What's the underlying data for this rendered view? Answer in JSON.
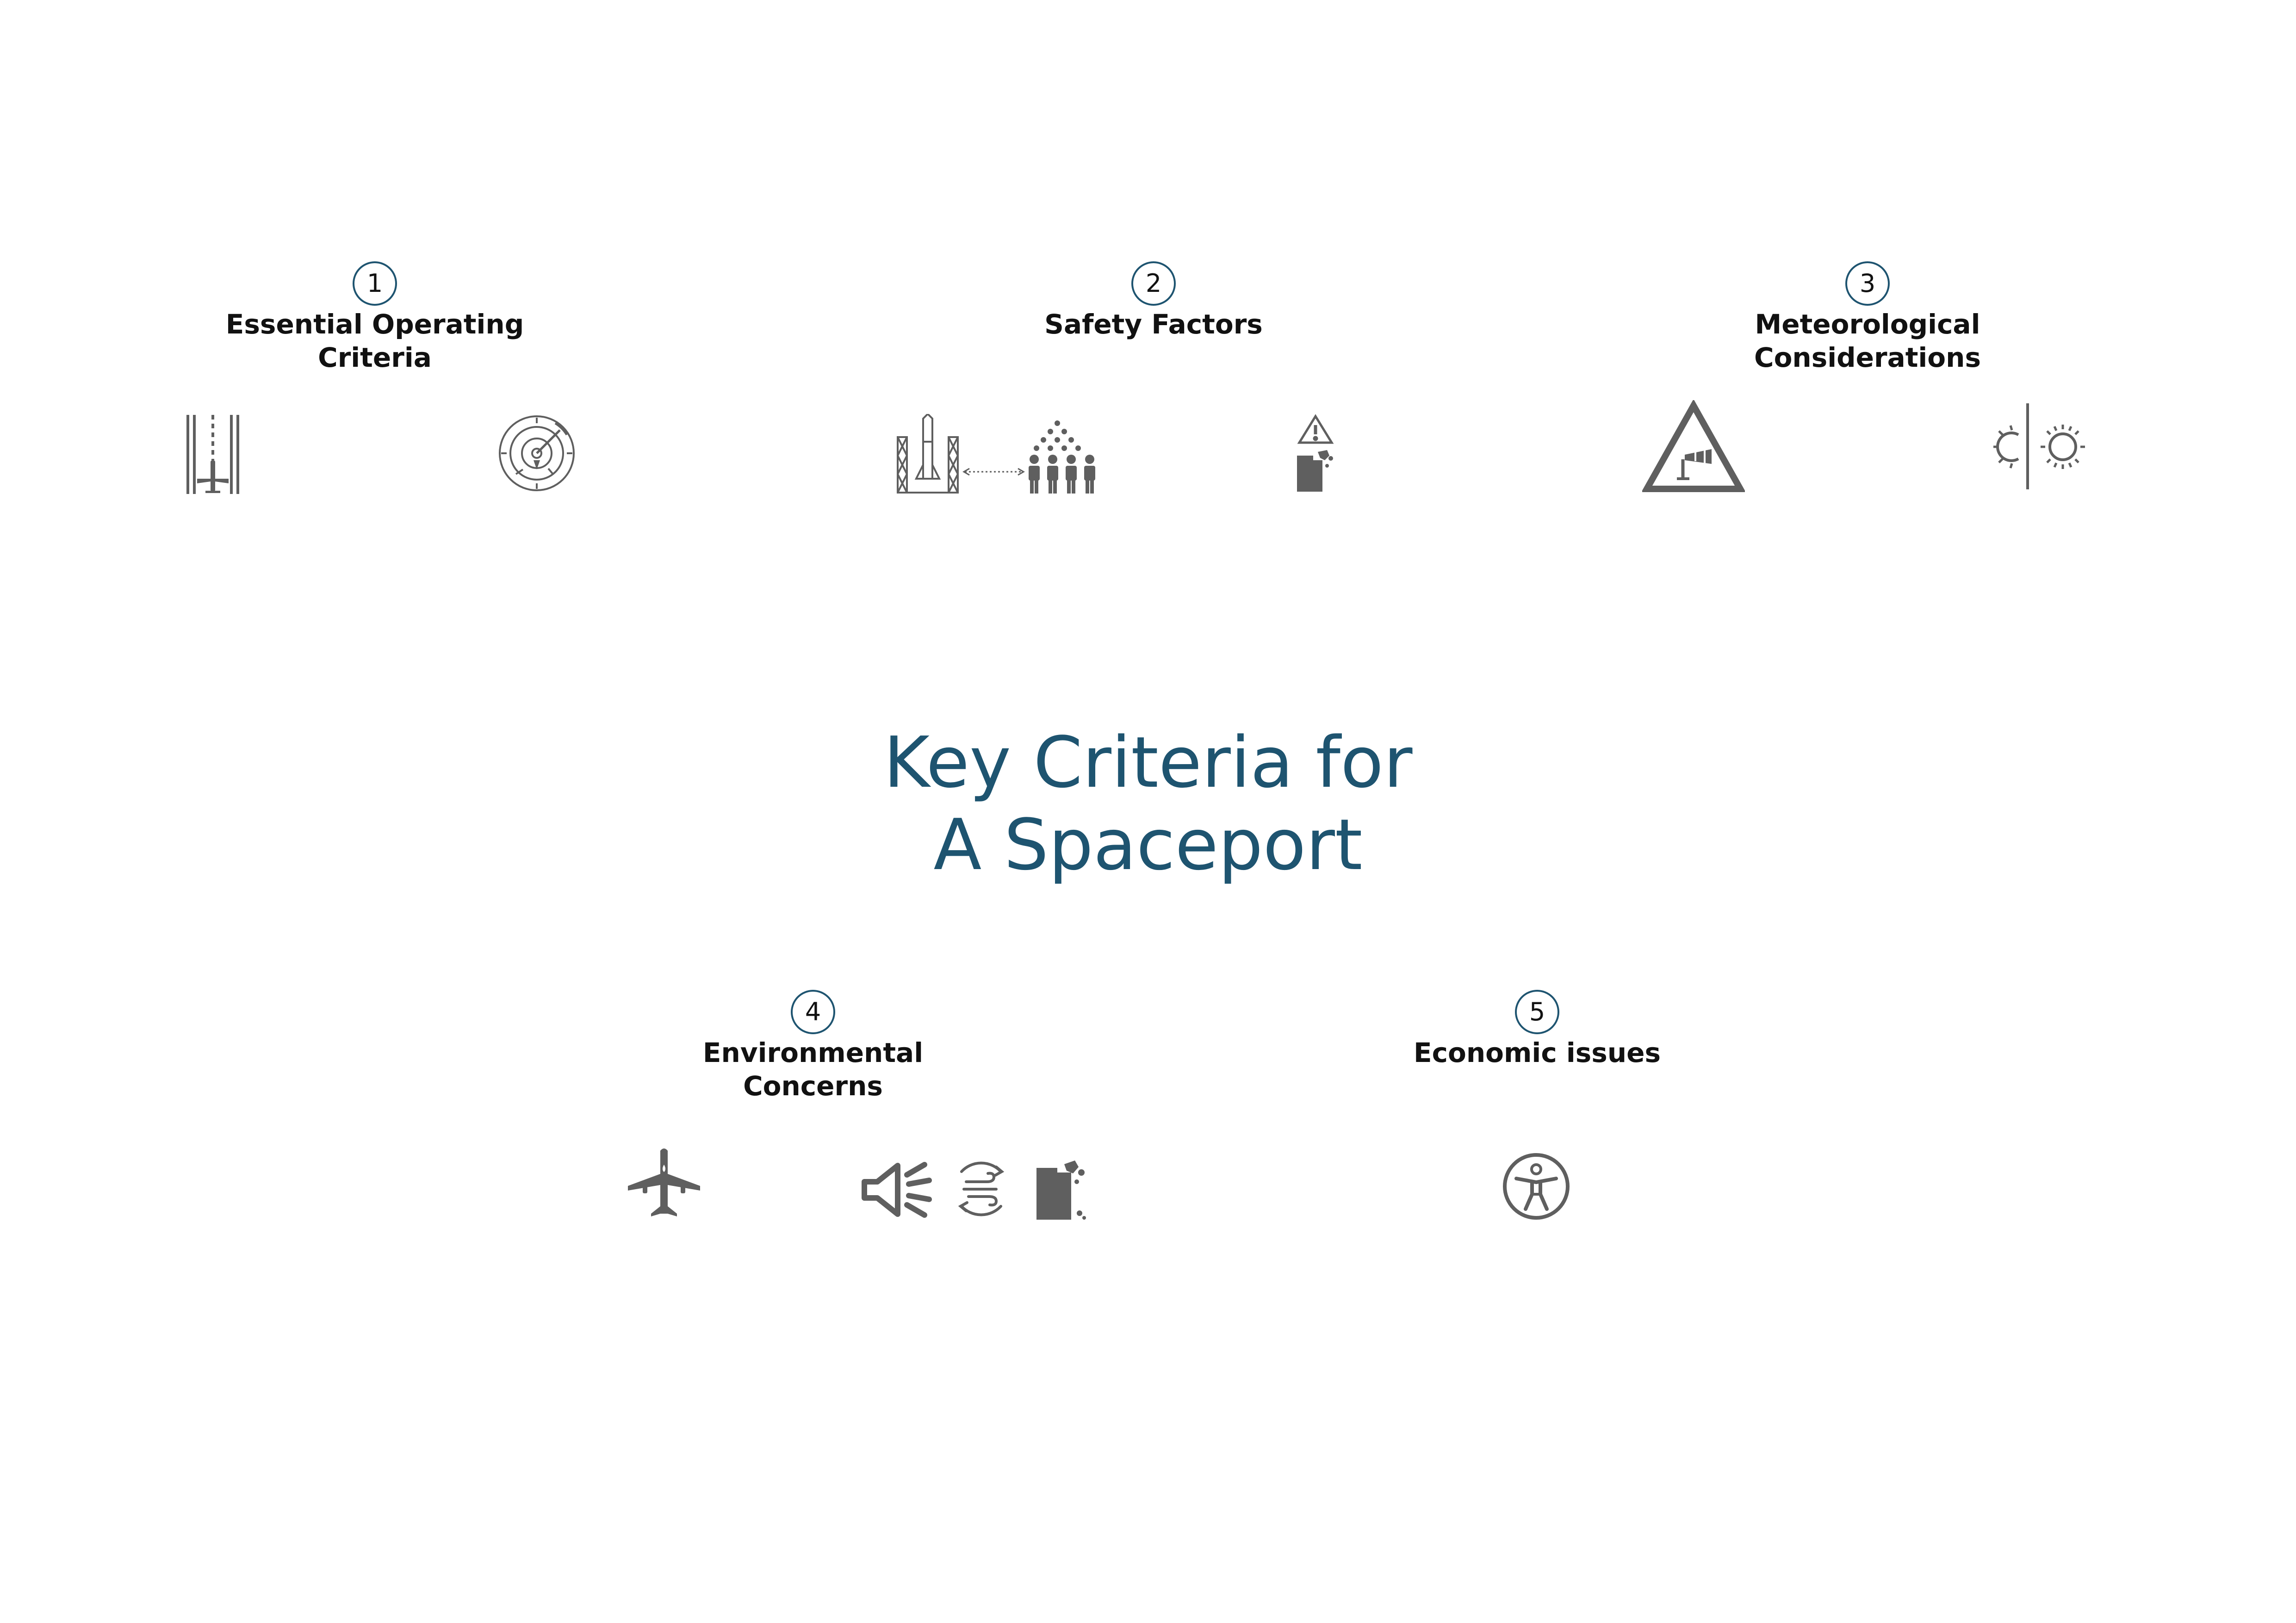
{
  "title": "Key Criteria for\nA Spaceport",
  "colors": {
    "accent": "#1e5470",
    "icon": "#5f5f5f",
    "text": "#111111"
  },
  "criteria": [
    {
      "number": "1",
      "label": "Essential Operating\nCriteria",
      "icons": [
        "runway-icon",
        "radar-icon"
      ]
    },
    {
      "number": "2",
      "label": "Safety Factors",
      "icons": [
        "launch-pad-crowd-distance-icon",
        "hazardous-fuel-icon"
      ]
    },
    {
      "number": "3",
      "label": "Meteorological\nConsiderations",
      "icons": [
        "windsock-warning-icon",
        "daylight-icon"
      ]
    },
    {
      "number": "4",
      "label": "Environmental\nConcerns",
      "icons": [
        "aircraft-icon",
        "noise-icon",
        "air-quality-icon",
        "fuel-pollution-icon"
      ]
    },
    {
      "number": "5",
      "label": "Economic issues",
      "icons": [
        "accessibility-icon"
      ]
    }
  ]
}
